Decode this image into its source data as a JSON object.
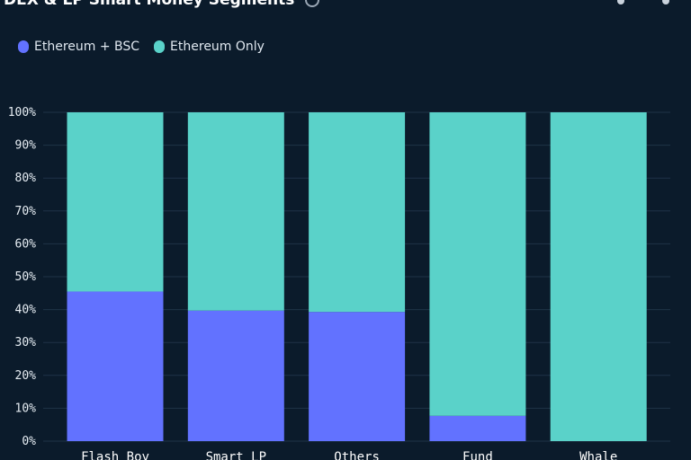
{
  "header": {
    "title": "DEX & LP Smart Money Segments"
  },
  "colors": {
    "background": "#0b1b2b",
    "grid": "#1f3347",
    "series_1": "#6272ff",
    "series_2": "#5ad2c9"
  },
  "chart_data": {
    "type": "bar",
    "stacked": true,
    "percent": true,
    "categories": [
      "Flash Boy",
      "Smart LP",
      "Others",
      "Fund",
      "Whale"
    ],
    "series": [
      {
        "name": "Ethereum + BSC",
        "values": [
          45.5,
          39.7,
          39.3,
          7.7,
          0
        ],
        "color": "#6272ff"
      },
      {
        "name": "Ethereum Only",
        "values": [
          54.5,
          60.3,
          60.7,
          92.3,
          100
        ],
        "color": "#5ad2c9"
      }
    ],
    "yticks": [
      "0%",
      "10%",
      "20%",
      "30%",
      "40%",
      "50%",
      "60%",
      "70%",
      "80%",
      "90%",
      "100%"
    ],
    "ylim": [
      0,
      100
    ],
    "grid": true,
    "legend_position": "top-left"
  }
}
